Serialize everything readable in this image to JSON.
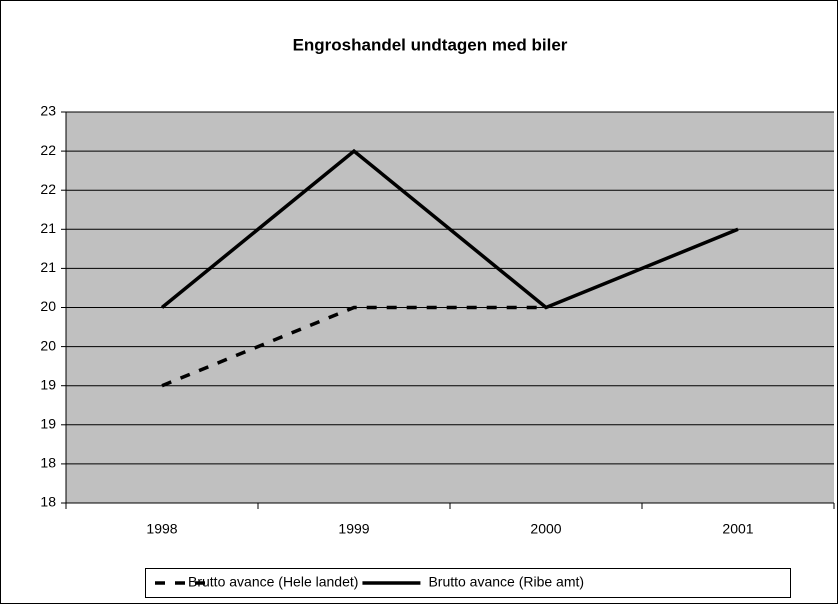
{
  "chart_data": {
    "type": "line",
    "title": "Engroshandel undtagen med biler",
    "categories": [
      "1998",
      "1999",
      "2000",
      "2001"
    ],
    "series": [
      {
        "name": "Brutto avance (Hele landet)",
        "color": "#000000",
        "style": "dashed",
        "values": [
          19.5,
          20.5,
          20.5,
          null
        ]
      },
      {
        "name": "Brutto avance (Ribe amt)",
        "color": "#000000",
        "style": "solid",
        "values": [
          20.5,
          22.5,
          20.5,
          21.5
        ]
      }
    ],
    "ylim": [
      18,
      23
    ],
    "yticks": [
      18,
      {
        "value": 18.5,
        "label": "18"
      },
      19,
      {
        "value": 19.5,
        "label": "19"
      },
      20,
      {
        "value": 20.5,
        "label": "20"
      },
      21,
      {
        "value": 21.5,
        "label": "21"
      },
      22,
      {
        "value": 22.5,
        "label": "22"
      },
      23
    ],
    "grid": true,
    "plot_color": "#c0c0c0",
    "legend": "bottom"
  }
}
